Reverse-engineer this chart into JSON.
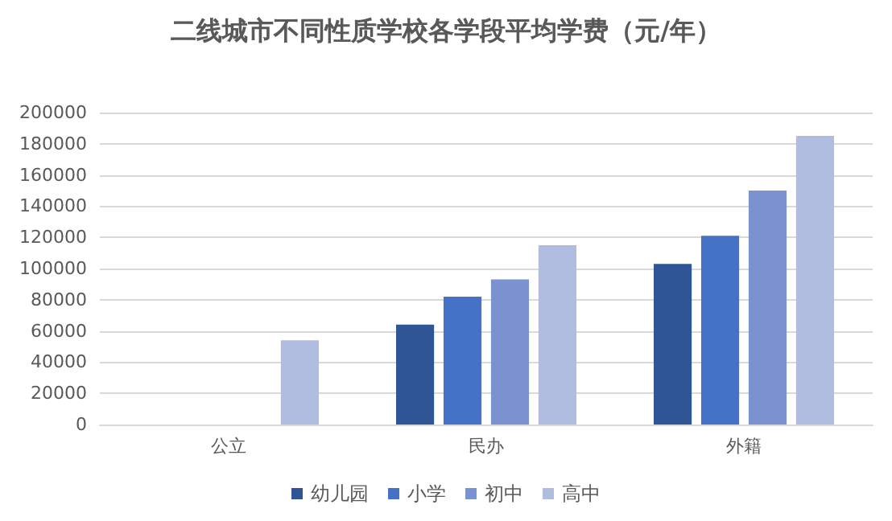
{
  "chart_data": {
    "type": "bar",
    "title": "二线城市不同性质学校各学段平均学费（元/年）",
    "categories": [
      "公立",
      "民办",
      "外籍"
    ],
    "series": [
      {
        "name": "幼儿园",
        "color": "#2f5597",
        "values": [
          null,
          64000,
          103000
        ]
      },
      {
        "name": "小学",
        "color": "#4472c4",
        "values": [
          null,
          82000,
          121000
        ]
      },
      {
        "name": "初中",
        "color": "#7a92d0",
        "values": [
          null,
          93000,
          150000
        ]
      },
      {
        "name": "高中",
        "color": "#b0bde0",
        "values": [
          54000,
          115000,
          185000
        ]
      }
    ],
    "ylim": [
      0,
      200000
    ],
    "yticks": [
      0,
      20000,
      40000,
      60000,
      80000,
      100000,
      120000,
      140000,
      160000,
      180000,
      200000
    ],
    "grid": "y",
    "legend": "bottom"
  }
}
